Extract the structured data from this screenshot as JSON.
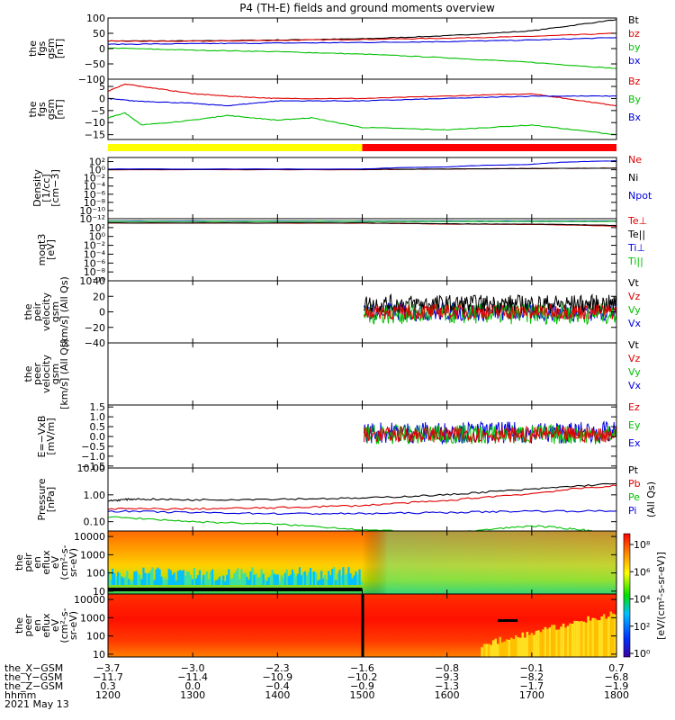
{
  "title": "P4 (TH-E) fields and ground moments overview",
  "chart_data": [
    {
      "type": "line",
      "ylabel": [
        "the",
        "fgs",
        "gsm",
        "[nT]"
      ],
      "ylim": [
        -100,
        100
      ],
      "yticks": [
        "100",
        "50",
        "0",
        "−50",
        "−100"
      ],
      "ytick_values": [
        100,
        50,
        0,
        -50,
        -100
      ],
      "legend": [
        {
          "name": "Bt",
          "color": "#000000"
        },
        {
          "name": "bz",
          "color": "#e00000"
        },
        {
          "name": "by",
          "color": "#00c000"
        },
        {
          "name": "bx",
          "color": "#0000e0"
        }
      ],
      "series": [
        {
          "name": "Bt",
          "color": "#000000",
          "x": [
            1200,
            1300,
            1400,
            1500,
            1600,
            1700,
            1800
          ],
          "values": [
            25,
            25,
            28,
            32,
            42,
            58,
            95
          ]
        },
        {
          "name": "bz",
          "color": "#e00000",
          "x": [
            1200,
            1300,
            1400,
            1500,
            1600,
            1700,
            1800
          ],
          "values": [
            24,
            24,
            27,
            30,
            34,
            40,
            50
          ]
        },
        {
          "name": "by",
          "color": "#00c000",
          "x": [
            1200,
            1300,
            1400,
            1500,
            1600,
            1700,
            1800
          ],
          "values": [
            2,
            -5,
            -10,
            -18,
            -30,
            -45,
            -65
          ]
        },
        {
          "name": "bx",
          "color": "#0000e0",
          "x": [
            1200,
            1300,
            1400,
            1500,
            1600,
            1700,
            1800
          ],
          "values": [
            14,
            16,
            18,
            20,
            23,
            28,
            36
          ]
        }
      ]
    },
    {
      "type": "line",
      "ylabel": [
        "the",
        "fgs",
        "gsm",
        "[nT]"
      ],
      "ylim": [
        -17,
        8
      ],
      "yticks": [
        "5",
        "0",
        "−5",
        "−10",
        "−15"
      ],
      "ytick_values": [
        5,
        0,
        -5,
        -10,
        -15
      ],
      "legend": [
        {
          "name": "Bz",
          "color": "#e00000"
        },
        {
          "name": "By",
          "color": "#00c000"
        },
        {
          "name": "Bx",
          "color": "#0000e0"
        }
      ],
      "series": [
        {
          "name": "Bz",
          "color": "#e00000",
          "x": [
            1200,
            1220,
            1240,
            1300,
            1340,
            1400,
            1500,
            1600,
            1700,
            1740,
            1800
          ],
          "values": [
            3,
            6,
            5,
            2,
            1,
            0,
            0,
            1,
            2,
            0,
            -3
          ]
        },
        {
          "name": "By",
          "color": "#00c000",
          "x": [
            1200,
            1220,
            1240,
            1300,
            1340,
            1400,
            1440,
            1500,
            1600,
            1700,
            1800
          ],
          "values": [
            -8,
            -6,
            -11,
            -9,
            -7,
            -9,
            -8,
            -12,
            -13,
            -11,
            -15
          ]
        },
        {
          "name": "Bx",
          "color": "#0000e0",
          "x": [
            1200,
            1230,
            1300,
            1340,
            1400,
            1500,
            1600,
            1700,
            1800
          ],
          "values": [
            0,
            -1,
            -2,
            -3,
            -1,
            -1,
            0,
            1,
            1
          ]
        }
      ]
    },
    {
      "type": "line",
      "ylabel": [
        "Density",
        "[1/cc]",
        "[cm−3]"
      ],
      "yscale": "log",
      "ylim": [
        1e-12,
        1000
      ],
      "yticks": [
        "10²",
        "10⁰",
        "10⁻²",
        "10⁻⁴",
        "10⁻⁶",
        "10⁻⁸",
        "10⁻¹⁰",
        "10⁻¹²"
      ],
      "ytick_values": [
        100,
        1,
        0.01,
        0.0001,
        1e-06,
        1e-08,
        1e-10,
        1e-12
      ],
      "legend": [
        {
          "name": "Ne",
          "color": "#e00000"
        },
        {
          "name": "Ni",
          "color": "#000000"
        },
        {
          "name": "Npot",
          "color": "#0000e0"
        }
      ],
      "series": [
        {
          "name": "Ne",
          "color": "#e00000",
          "x": [
            1200,
            1500,
            1600,
            1700,
            1800
          ],
          "values": [
            1,
            1,
            1.5,
            2,
            2.5
          ]
        },
        {
          "name": "Ni",
          "color": "#000000",
          "x": [
            1200,
            1500,
            1600,
            1700,
            1800
          ],
          "values": [
            1.2,
            1.2,
            1.5,
            2,
            2.5
          ]
        },
        {
          "name": "Npot",
          "color": "#0000e0",
          "x": [
            1200,
            1500,
            1600,
            1700,
            1800
          ],
          "values": [
            1.5,
            1.5,
            5,
            20,
            150
          ]
        }
      ]
    },
    {
      "type": "line",
      "ylabel": [
        "moqt3",
        "[eV]"
      ],
      "yscale": "log",
      "ylim": [
        1e-10,
        10000
      ],
      "yticks": [
        "10²",
        "10⁰",
        "10⁻²",
        "10⁻⁴",
        "10⁻⁶",
        "10⁻⁸",
        "10⁻¹⁰"
      ],
      "ytick_values": [
        100,
        1,
        0.01,
        0.0001,
        1e-06,
        1e-08,
        1e-10
      ],
      "legend": [
        {
          "name": "Te⊥",
          "color": "#e00000"
        },
        {
          "name": "Te||",
          "color": "#000000"
        },
        {
          "name": "Ti⊥",
          "color": "#0000e0"
        },
        {
          "name": "Ti||",
          "color": "#00c000"
        }
      ],
      "series": [
        {
          "name": "Te⊥",
          "color": "#e00000",
          "x": [
            1200,
            1500,
            1600,
            1700,
            1800
          ],
          "values": [
            1000,
            1000,
            600,
            500,
            200
          ]
        },
        {
          "name": "Te||",
          "color": "#000000",
          "x": [
            1200,
            1500,
            1600,
            1700,
            1800
          ],
          "values": [
            1100,
            1100,
            700,
            600,
            300
          ]
        },
        {
          "name": "Ti⊥",
          "color": "#0000e0",
          "x": [
            1200,
            1500,
            1600,
            1700,
            1800
          ],
          "values": [
            3000,
            3000,
            3000,
            3000,
            3000
          ]
        },
        {
          "name": "Ti||",
          "color": "#00c000",
          "x": [
            1200,
            1500,
            1600,
            1700,
            1800
          ],
          "values": [
            2500,
            2500,
            2500,
            2500,
            2500
          ]
        }
      ]
    },
    {
      "type": "line",
      "ylabel": [
        "the",
        "peir",
        "velocity",
        "gsm",
        "[km/s] (All Qs)"
      ],
      "ylim": [
        -40,
        40
      ],
      "yticks": [
        "40",
        "20",
        "0",
        "−20",
        "−40"
      ],
      "ytick_values": [
        40,
        20,
        0,
        -20,
        -40
      ],
      "legend": [
        {
          "name": "Vt",
          "color": "#000000"
        },
        {
          "name": "Vz",
          "color": "#e00000"
        },
        {
          "name": "Vy",
          "color": "#00c000"
        },
        {
          "name": "Vx",
          "color": "#0000e0"
        }
      ],
      "noise": {
        "start": 1502,
        "end": 1800,
        "bands": [
          {
            "color": "#0000e0",
            "center": 0,
            "amp": 12
          },
          {
            "color": "#00c000",
            "center": -2,
            "amp": 14
          },
          {
            "color": "#000000",
            "center": 10,
            "amp": 12
          },
          {
            "color": "#e00000",
            "center": 0,
            "amp": 10
          }
        ]
      }
    },
    {
      "type": "line",
      "ylabel": [
        "the",
        "peer",
        "velocity",
        "gsm",
        "[km/s] (All Qs)"
      ],
      "ylim": [
        -40,
        40
      ],
      "yticks": [],
      "ytick_values": [],
      "legend": [
        {
          "name": "Vt",
          "color": "#000000"
        },
        {
          "name": "Vz",
          "color": "#e00000"
        },
        {
          "name": "Vy",
          "color": "#00c000"
        },
        {
          "name": "Vx",
          "color": "#0000e0"
        }
      ]
    },
    {
      "type": "line",
      "ylabel": [
        "E=−VxB",
        "[mV/m]"
      ],
      "ylim": [
        -1.6,
        1.6
      ],
      "yticks": [
        "1.5",
        "1.0",
        "0.5",
        "0.0",
        "−0.5",
        "−1.0",
        "−1.5"
      ],
      "ytick_values": [
        1.5,
        1.0,
        0.5,
        0.0,
        -0.5,
        -1.0,
        -1.5
      ],
      "legend": [
        {
          "name": "Ez",
          "color": "#e00000"
        },
        {
          "name": "Ey",
          "color": "#00c000"
        },
        {
          "name": "Ex",
          "color": "#0000e0"
        }
      ],
      "noise": {
        "start": 1502,
        "end": 1800,
        "bands": [
          {
            "color": "#0000e0",
            "center": 0.2,
            "amp": 0.55
          },
          {
            "color": "#00c000",
            "center": 0.1,
            "amp": 0.5
          },
          {
            "color": "#e00000",
            "center": 0.1,
            "amp": 0.4
          }
        ]
      }
    },
    {
      "type": "line",
      "ylabel": [
        "Pressure",
        "[nPa]"
      ],
      "yscale": "log",
      "ylim": [
        0.045,
        10
      ],
      "yticks": [
        "10.00",
        "1.00",
        "0.10"
      ],
      "ytick_values": [
        10,
        1,
        0.1
      ],
      "legend": [
        {
          "name": "Pt",
          "color": "#000000"
        },
        {
          "name": "Pb",
          "color": "#e00000"
        },
        {
          "name": "Pe",
          "color": "#00c000"
        },
        {
          "name": "Pi",
          "color": "#0000e0"
        }
      ],
      "right_label": "(All Qs)",
      "series": [
        {
          "name": "Pt",
          "color": "#000000",
          "x": [
            1200,
            1230,
            1300,
            1400,
            1500,
            1600,
            1700,
            1800
          ],
          "values": [
            0.6,
            0.7,
            0.65,
            0.7,
            0.75,
            1.0,
            1.6,
            2.6
          ]
        },
        {
          "name": "Pb",
          "color": "#e00000",
          "x": [
            1200,
            1300,
            1400,
            1500,
            1600,
            1700,
            1800
          ],
          "values": [
            0.3,
            0.3,
            0.33,
            0.4,
            0.6,
            1.1,
            2.2
          ]
        },
        {
          "name": "Pe",
          "color": "#00c000",
          "x": [
            1200,
            1300,
            1400,
            1500,
            1600,
            1620,
            1700,
            1760,
            1800
          ],
          "values": [
            0.15,
            0.1,
            0.08,
            0.05,
            0.035,
            0.04,
            0.07,
            0.05,
            0.03
          ]
        },
        {
          "name": "Pi",
          "color": "#0000e0",
          "x": [
            1200,
            1300,
            1400,
            1500,
            1600,
            1700,
            1800
          ],
          "values": [
            0.25,
            0.22,
            0.2,
            0.2,
            0.22,
            0.25,
            0.25
          ]
        }
      ]
    },
    {
      "type": "heatmap",
      "ylabel": [
        "the",
        "peir",
        "en",
        "eflux",
        "eV",
        "(cm²-s-",
        "sr-eV)"
      ],
      "yscale": "log",
      "ylim": [
        7,
        20000
      ],
      "yticks": [
        "10000",
        "1000",
        "100",
        "10"
      ],
      "ytick_values": [
        10000,
        1000,
        100,
        10
      ]
    },
    {
      "type": "heatmap",
      "ylabel": [
        "the",
        "peer",
        "en",
        "eflux",
        "eV",
        "(cm²-s-",
        "sr-eV)"
      ],
      "yscale": "log",
      "ylim": [
        7,
        20000
      ],
      "yticks": [
        "10000",
        "1000",
        "100",
        "10"
      ],
      "ytick_values": [
        10000,
        1000,
        100,
        10
      ]
    }
  ],
  "mode_bar": {
    "segments": [
      {
        "from": 1200,
        "to": 1500,
        "color": "#ffff00"
      },
      {
        "from": 1500,
        "to": 1800,
        "color": "#ff0000"
      }
    ]
  },
  "colorbar": {
    "label": "[eV/(cm²-s-sr-eV)]",
    "ticks": [
      "10⁸",
      "10⁶",
      "10⁴",
      "10²",
      "10⁰"
    ]
  },
  "xaxis": {
    "range": [
      1200,
      1800
    ],
    "tick_values": [
      1200,
      1300,
      1400,
      1500,
      1600,
      1700,
      1800
    ],
    "rows": [
      {
        "label": "the_X−GSM",
        "values": [
          "−3.7",
          "−3.0",
          "−2.3",
          "−1.6",
          "−0.8",
          "−0.1",
          "0.7"
        ]
      },
      {
        "label": "the_Y−GSM",
        "values": [
          "−11.7",
          "−11.4",
          "−10.9",
          "−10.2",
          "−9.3",
          "−8.2",
          "−6.8"
        ]
      },
      {
        "label": "the_Z−GSM",
        "values": [
          "0.3",
          "0.0",
          "−0.4",
          "−0.9",
          "−1.3",
          "−1.7",
          "−1.9"
        ]
      },
      {
        "label": "hhmm",
        "values": [
          "1200",
          "1300",
          "1400",
          "1500",
          "1600",
          "1700",
          "1800"
        ]
      }
    ],
    "date": "2021 May 13"
  }
}
